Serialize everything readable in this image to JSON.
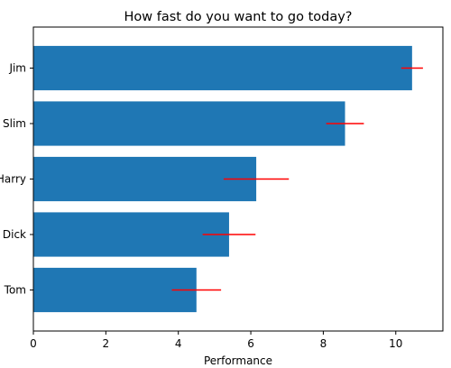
{
  "chart_data": {
    "type": "bar",
    "orientation": "horizontal",
    "title": "How fast do you want to go today?",
    "xlabel": "Performance",
    "ylabel": "",
    "categories": [
      "Tom",
      "Dick",
      "Harry",
      "Slim",
      "Jim"
    ],
    "values": [
      4.5,
      5.4,
      6.15,
      8.6,
      10.45
    ],
    "errors": [
      0.68,
      0.73,
      0.9,
      0.52,
      0.3
    ],
    "xlim": [
      0,
      11.3
    ],
    "xticks": [
      0,
      2,
      4,
      6,
      8,
      10
    ],
    "bar_color": "#1f77b4",
    "error_color": "#ff0000",
    "grid": false,
    "legend": "none"
  }
}
